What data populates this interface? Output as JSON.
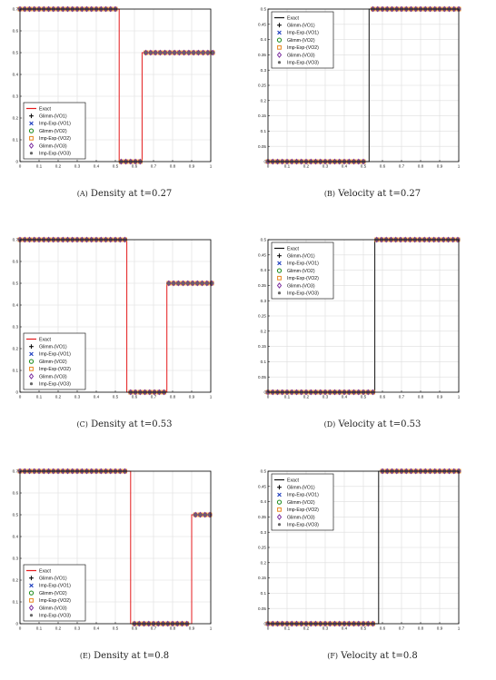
{
  "legend_labels": [
    "Exact",
    "Glimm-(VO1)",
    "Imp-Exp-(VO1)",
    "Glimm-(VO2)",
    "Imp-Exp-(VO2)",
    "Glimm-(VO3)",
    "Imp-Exp-(VO3)"
  ],
  "colors": {
    "exact_density": "#e41a1c",
    "exact_velocity": "#111111",
    "glimm_vo1": "#111111",
    "impexp_vo1": "#1f3fbf",
    "glimm_vo2": "#1a8a1a",
    "impexp_vo2": "#e8871e",
    "glimm_vo3": "#7b2c9e",
    "impexp_vo3": "#666666",
    "grid": "#dddddd"
  },
  "chart_data": [
    {
      "id": "a",
      "type": "line",
      "caption_letter": "(A)",
      "caption_text": "Density at t=0.27",
      "xlim": [
        0,
        1
      ],
      "ylim": [
        0,
        0.7
      ],
      "xticks": [
        "0",
        "0.1",
        "0.2",
        "0.3",
        "0.4",
        "0.5",
        "0.6",
        "0.7",
        "0.8",
        "0.9",
        "1"
      ],
      "yticks": [
        "0",
        "0.1",
        "0.2",
        "0.3",
        "0.4",
        "0.5",
        "0.6",
        "0.7"
      ],
      "legend_position": "bottom-left",
      "exact_color_key": "exact_density",
      "exact": {
        "x": [
          0,
          0.52,
          0.52,
          0.64,
          0.64,
          1
        ],
        "y": [
          0.7,
          0.7,
          0,
          0,
          0.5,
          0.5
        ]
      },
      "marker_segments": [
        {
          "x0": 0,
          "x1": 0.5,
          "y": 0.7
        },
        {
          "x0": 0.53,
          "x1": 0.63,
          "y": 0
        },
        {
          "x0": 0.66,
          "x1": 1,
          "y": 0.5
        }
      ]
    },
    {
      "id": "b",
      "type": "line",
      "caption_letter": "(B)",
      "caption_text": "Velocity at t=0.27",
      "xlim": [
        0,
        1
      ],
      "ylim": [
        0,
        0.5
      ],
      "xticks": [
        "0",
        "0.1",
        "0.2",
        "0.3",
        "0.4",
        "0.5",
        "0.6",
        "0.7",
        "0.8",
        "0.9",
        "1"
      ],
      "yticks": [
        "0",
        "0.05",
        "0.1",
        "0.15",
        "0.2",
        "0.25",
        "0.3",
        "0.35",
        "0.4",
        "0.45",
        "0.5"
      ],
      "legend_position": "top-left",
      "exact_color_key": "exact_velocity",
      "exact": {
        "x": [
          0,
          0.53,
          0.53,
          1
        ],
        "y": [
          0,
          0,
          0.5,
          0.5
        ]
      },
      "marker_segments": [
        {
          "x0": 0,
          "x1": 0.5,
          "y": 0
        },
        {
          "x0": 0.55,
          "x1": 1,
          "y": 0.5
        }
      ]
    },
    {
      "id": "c",
      "type": "line",
      "caption_letter": "(C)",
      "caption_text": "Density at t=0.53",
      "xlim": [
        0,
        1
      ],
      "ylim": [
        0,
        0.7
      ],
      "xticks": [
        "0",
        "0.1",
        "0.2",
        "0.3",
        "0.4",
        "0.5",
        "0.6",
        "0.7",
        "0.8",
        "0.9",
        "1"
      ],
      "yticks": [
        "0",
        "0.1",
        "0.2",
        "0.3",
        "0.4",
        "0.5",
        "0.6",
        "0.7"
      ],
      "legend_position": "bottom-left",
      "exact_color_key": "exact_density",
      "exact": {
        "x": [
          0,
          0.56,
          0.56,
          0.77,
          0.77,
          1
        ],
        "y": [
          0.7,
          0.7,
          0,
          0,
          0.5,
          0.5
        ]
      },
      "marker_segments": [
        {
          "x0": 0,
          "x1": 0.55,
          "y": 0.7
        },
        {
          "x0": 0.58,
          "x1": 0.75,
          "y": 0
        },
        {
          "x0": 0.78,
          "x1": 1,
          "y": 0.5
        }
      ]
    },
    {
      "id": "d",
      "type": "line",
      "caption_letter": "(D)",
      "caption_text": "Velocity at t=0.53",
      "xlim": [
        0,
        1
      ],
      "ylim": [
        0,
        0.5
      ],
      "xticks": [
        "0",
        "0.1",
        "0.2",
        "0.3",
        "0.4",
        "0.5",
        "0.6",
        "0.7",
        "0.8",
        "0.9",
        "1"
      ],
      "yticks": [
        "0",
        "0.05",
        "0.1",
        "0.15",
        "0.2",
        "0.25",
        "0.3",
        "0.35",
        "0.4",
        "0.45",
        "0.5"
      ],
      "legend_position": "top-left",
      "exact_color_key": "exact_velocity",
      "exact": {
        "x": [
          0,
          0.56,
          0.56,
          1
        ],
        "y": [
          0,
          0,
          0.5,
          0.5
        ]
      },
      "marker_segments": [
        {
          "x0": 0,
          "x1": 0.55,
          "y": 0
        },
        {
          "x0": 0.57,
          "x1": 1,
          "y": 0.5
        }
      ]
    },
    {
      "id": "e",
      "type": "line",
      "caption_letter": "(E)",
      "caption_text": "Density at t=0.8",
      "xlim": [
        0,
        1
      ],
      "ylim": [
        0,
        0.7
      ],
      "xticks": [
        "0",
        "0.1",
        "0.2",
        "0.3",
        "0.4",
        "0.5",
        "0.6",
        "0.7",
        "0.8",
        "0.9",
        "1"
      ],
      "yticks": [
        "0",
        "0.1",
        "0.2",
        "0.3",
        "0.4",
        "0.5",
        "0.6",
        "0.7"
      ],
      "legend_position": "bottom-left",
      "exact_color_key": "exact_density",
      "exact": {
        "x": [
          0,
          0.58,
          0.58,
          0.9,
          0.9,
          1
        ],
        "y": [
          0.7,
          0.7,
          0,
          0,
          0.5,
          0.5
        ]
      },
      "marker_segments": [
        {
          "x0": 0,
          "x1": 0.55,
          "y": 0.7
        },
        {
          "x0": 0.6,
          "x1": 0.88,
          "y": 0
        },
        {
          "x0": 0.92,
          "x1": 1,
          "y": 0.5
        }
      ]
    },
    {
      "id": "f",
      "type": "line",
      "caption_letter": "(F)",
      "caption_text": "Velocity at t=0.8",
      "xlim": [
        0,
        1
      ],
      "ylim": [
        0,
        0.5
      ],
      "xticks": [
        "0",
        "0.1",
        "0.2",
        "0.3",
        "0.4",
        "0.5",
        "0.6",
        "0.7",
        "0.8",
        "0.9",
        "1"
      ],
      "yticks": [
        "0",
        "0.05",
        "0.1",
        "0.15",
        "0.2",
        "0.25",
        "0.3",
        "0.35",
        "0.4",
        "0.45",
        "0.5"
      ],
      "legend_position": "top-left",
      "exact_color_key": "exact_velocity",
      "exact": {
        "x": [
          0,
          0.58,
          0.58,
          1
        ],
        "y": [
          0,
          0,
          0.5,
          0.5
        ]
      },
      "marker_segments": [
        {
          "x0": 0,
          "x1": 0.55,
          "y": 0
        },
        {
          "x0": 0.6,
          "x1": 1,
          "y": 0.5
        }
      ]
    }
  ]
}
